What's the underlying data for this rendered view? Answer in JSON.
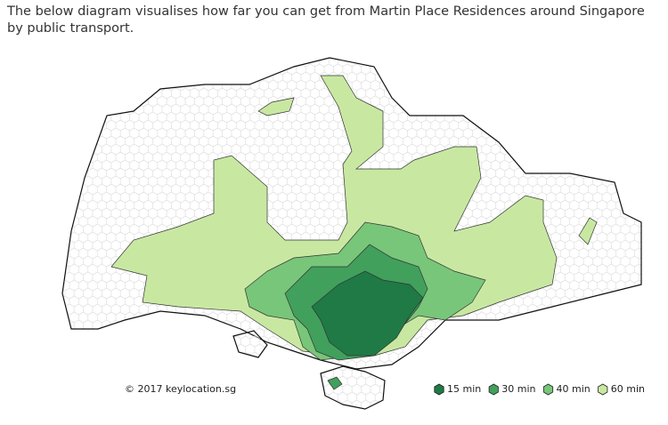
{
  "description": "The below diagram visualises how far you can get from Martin Place Residences around Singapore by public transport.",
  "copyright": "© 2017 keylocation.sg",
  "legend": [
    {
      "label": "15 min",
      "color": "#1f7a45"
    },
    {
      "label": "30 min",
      "color": "#41a05c"
    },
    {
      "label": "40 min",
      "color": "#78c679"
    },
    {
      "label": "60 min",
      "color": "#c8e8a2"
    }
  ]
}
